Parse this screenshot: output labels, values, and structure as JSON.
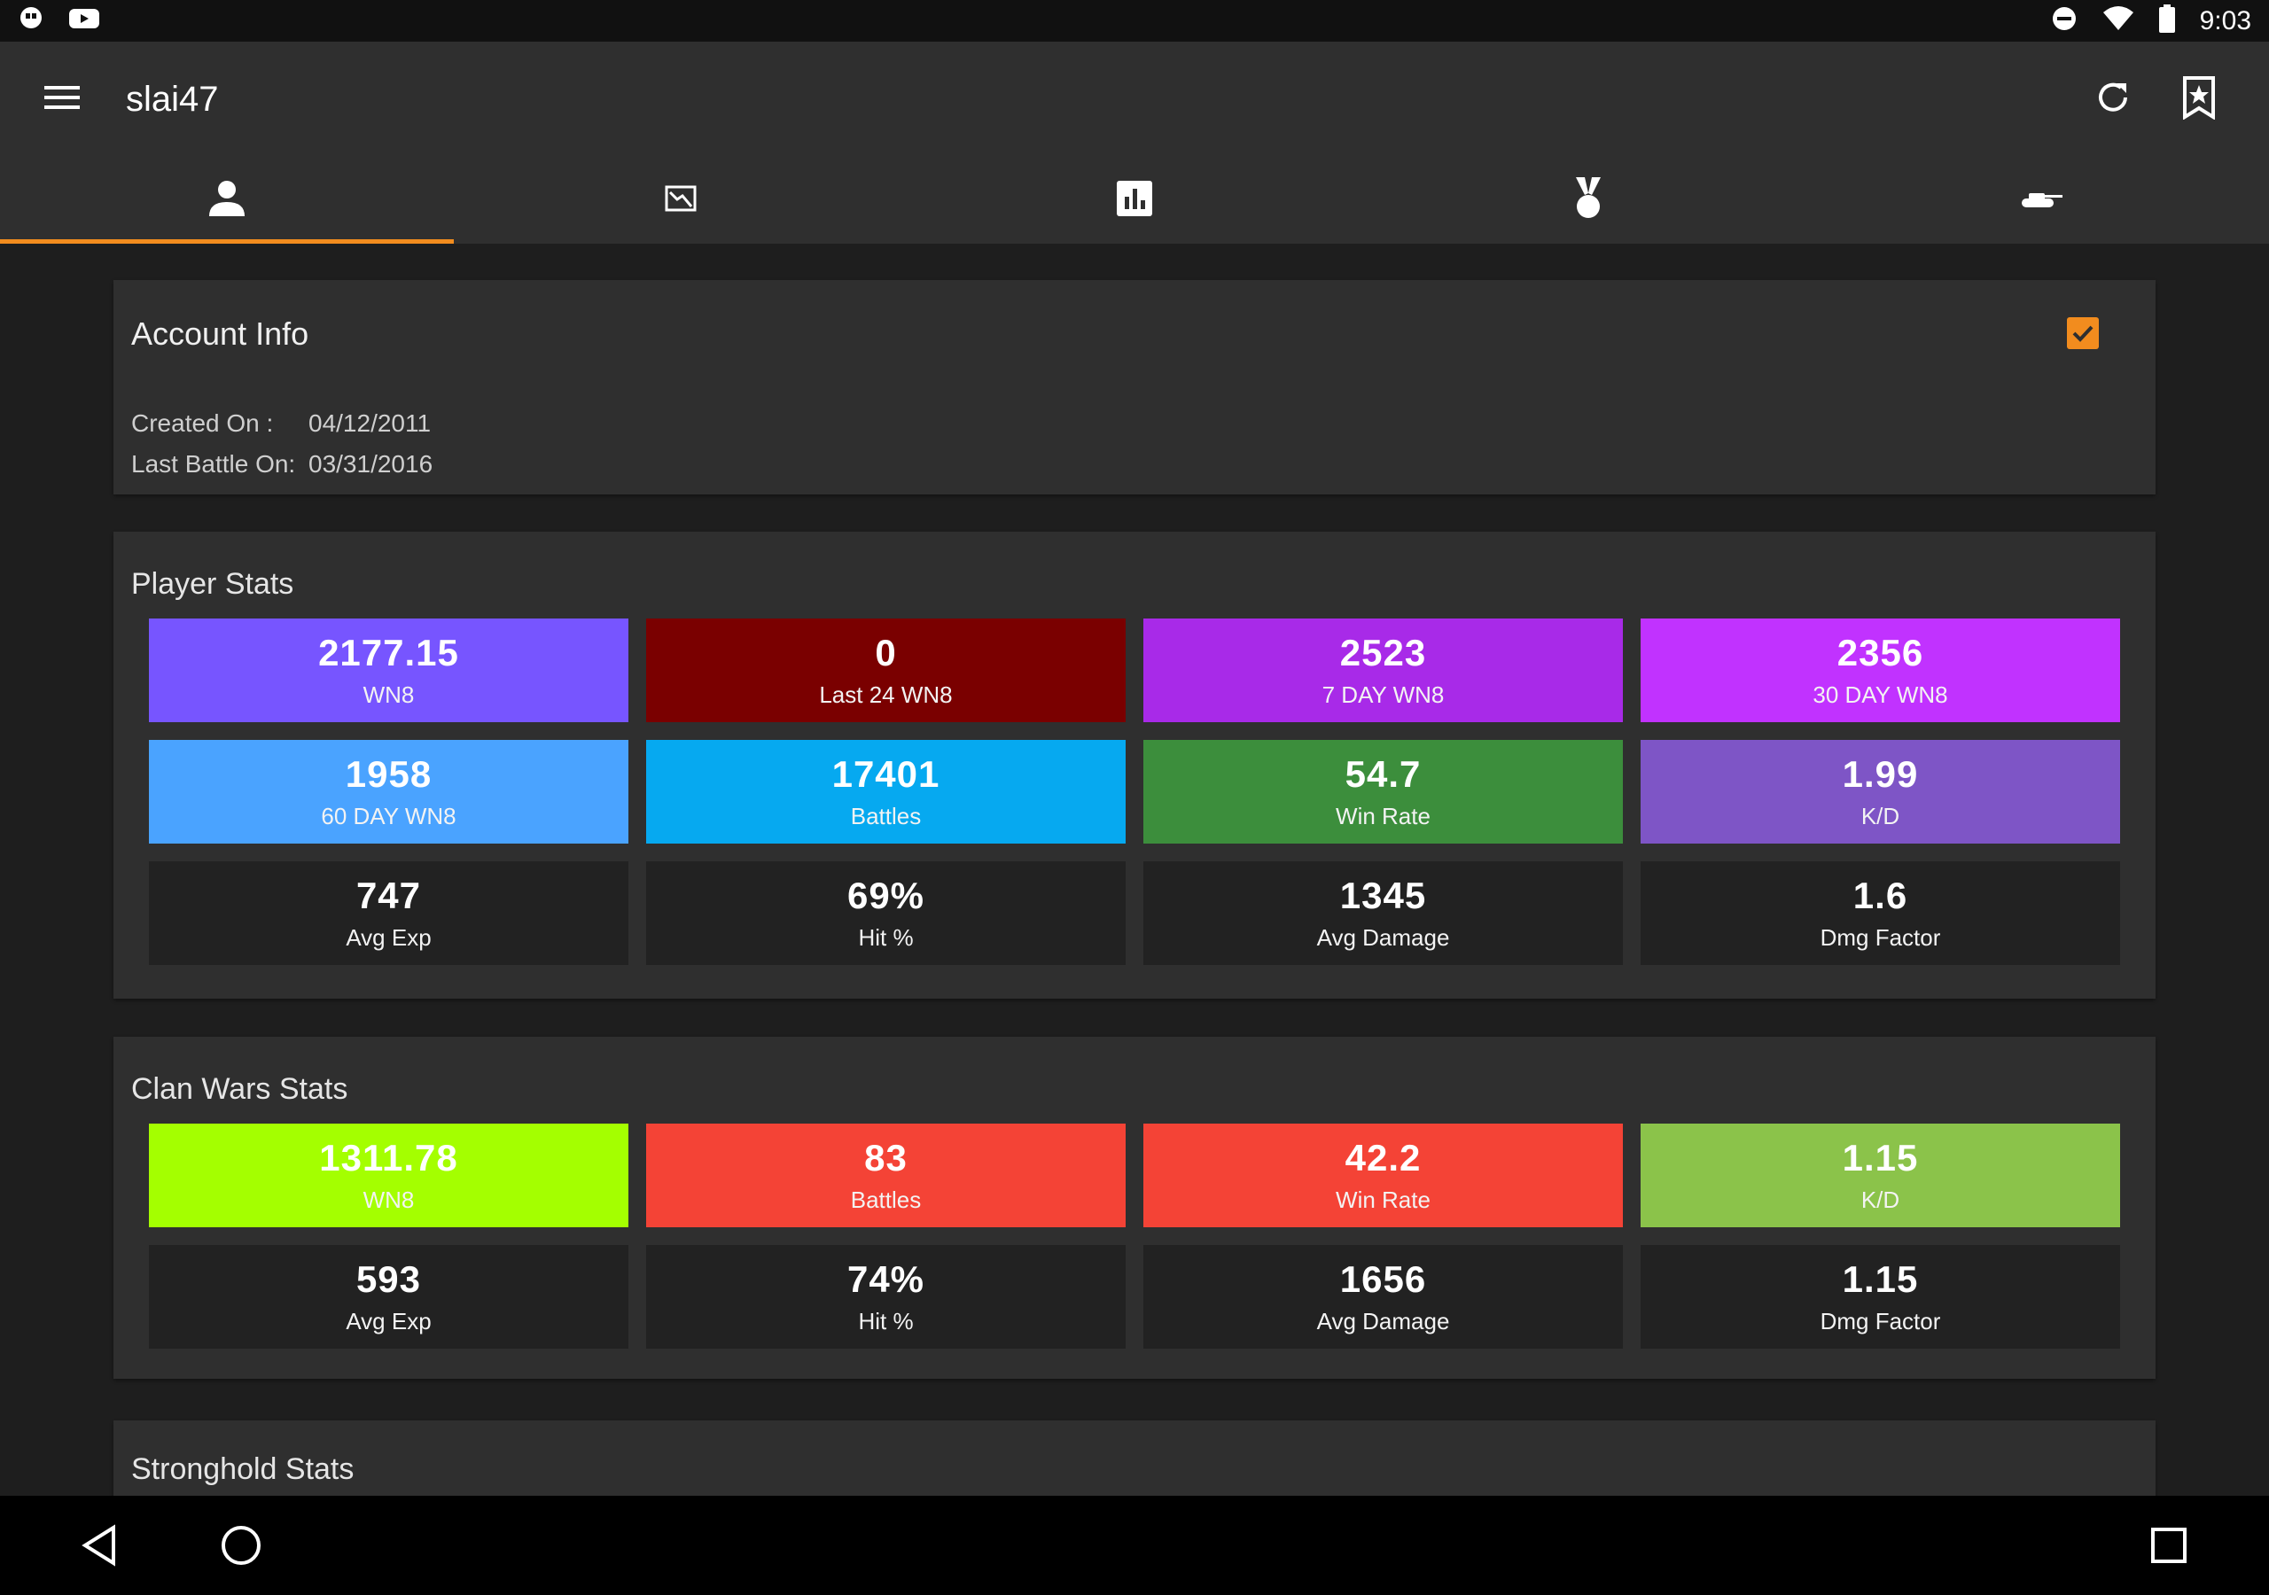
{
  "status_bar": {
    "time": "9:03"
  },
  "app_bar": {
    "title": "slai47"
  },
  "tabs": [
    {
      "icon": "person-icon",
      "active": true
    },
    {
      "icon": "trend-chart-icon",
      "active": false
    },
    {
      "icon": "bar-chart-icon",
      "active": false
    },
    {
      "icon": "medal-icon",
      "active": false
    },
    {
      "icon": "tank-icon",
      "active": false
    }
  ],
  "account_info": {
    "title": "Account Info",
    "created_label": "Created On :",
    "created_value": "04/12/2011",
    "last_battle_label": "Last Battle On:",
    "last_battle_value": "03/31/2016"
  },
  "player_stats": {
    "title": "Player Stats",
    "tiles": [
      {
        "value": "2177.15",
        "label": "WN8",
        "color": "#7755ff"
      },
      {
        "value": "0",
        "label": "Last 24 WN8",
        "color": "#7a0000"
      },
      {
        "value": "2523",
        "label": "7 DAY WN8",
        "color": "#a82ae8"
      },
      {
        "value": "2356",
        "label": "30 DAY WN8",
        "color": "#c132ff"
      },
      {
        "value": "1958",
        "label": "60 DAY WN8",
        "color": "#4aa3ff"
      },
      {
        "value": "17401",
        "label": "Battles",
        "color": "#06a9f0"
      },
      {
        "value": "54.7",
        "label": "Win Rate",
        "color": "#3c8e3c"
      },
      {
        "value": "1.99",
        "label": "K/D",
        "color": "#7e55c6"
      },
      {
        "value": "747",
        "label": "Avg Exp",
        "color": "#222222"
      },
      {
        "value": "69%",
        "label": "Hit %",
        "color": "#222222"
      },
      {
        "value": "1345",
        "label": "Avg Damage",
        "color": "#222222"
      },
      {
        "value": "1.6",
        "label": "Dmg Factor",
        "color": "#222222"
      }
    ]
  },
  "clan_wars_stats": {
    "title": "Clan Wars Stats",
    "tiles": [
      {
        "value": "1311.78",
        "label": "WN8",
        "color": "#a4ff00"
      },
      {
        "value": "83",
        "label": "Battles",
        "color": "#f44336"
      },
      {
        "value": "42.2",
        "label": "Win Rate",
        "color": "#f44336"
      },
      {
        "value": "1.15",
        "label": "K/D",
        "color": "#8bc34a"
      },
      {
        "value": "593",
        "label": "Avg Exp",
        "color": "#222222"
      },
      {
        "value": "74%",
        "label": "Hit %",
        "color": "#222222"
      },
      {
        "value": "1656",
        "label": "Avg Damage",
        "color": "#222222"
      },
      {
        "value": "1.15",
        "label": "Dmg Factor",
        "color": "#222222"
      }
    ]
  },
  "stronghold_stats": {
    "title": "Stronghold Stats"
  }
}
